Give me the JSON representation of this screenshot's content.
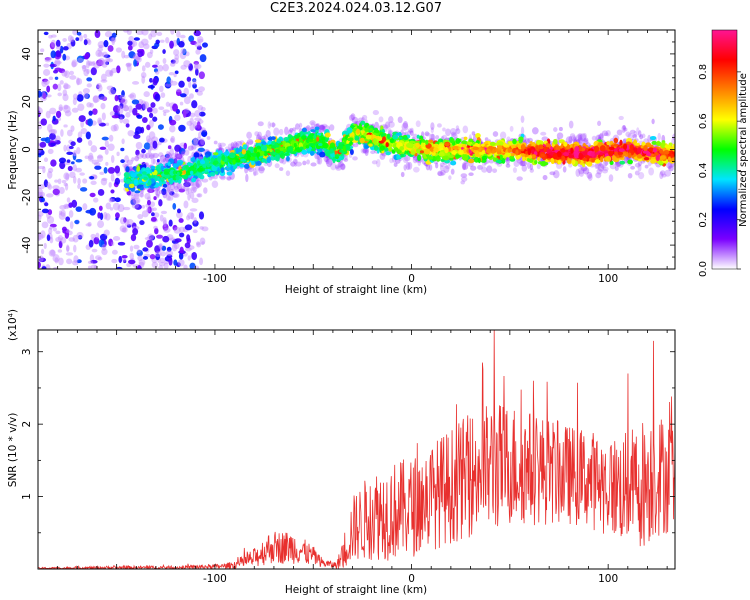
{
  "title": "C2E3.2024.024.03.12.G07",
  "colors": {
    "snr_line": "#e8302e",
    "spectral_colormap": [
      "#ffffff",
      "#7a00ff",
      "#0000ff",
      "#00e5ff",
      "#00ff00",
      "#ffff00",
      "#ff8000",
      "#ff0000",
      "#ff1493"
    ]
  },
  "chart_data": [
    {
      "type": "heatmap",
      "title": "C2E3.2024.024.03.12.G07",
      "xlabel": "Height of straight line (km)",
      "ylabel": "Frequency (Hz)",
      "xlim": [
        -190,
        134
      ],
      "ylim": [
        -50,
        50
      ],
      "xticks": [
        -100,
        0,
        100
      ],
      "yticks": [
        -40,
        -20,
        0,
        20,
        40
      ],
      "colorbar": {
        "label": "Normalized spectral amplitude",
        "range": [
          0.0,
          0.97
        ],
        "ticks": [
          "0.0",
          "0.2",
          "0.4",
          "0.6",
          "0.8"
        ]
      },
      "signal_track": {
        "x": [
          -140,
          -120,
          -100,
          -80,
          -60,
          -45,
          -38,
          -28,
          -10,
          10,
          30,
          50,
          70,
          90,
          110,
          130
        ],
        "center_frequency_hz": [
          -12,
          -10,
          -6,
          -2,
          2,
          4,
          -2,
          8,
          2,
          0,
          0,
          0,
          -1,
          -2,
          0,
          -2
        ],
        "typical_amplitude": [
          0.25,
          0.3,
          0.3,
          0.35,
          0.4,
          0.35,
          0.35,
          0.45,
          0.45,
          0.5,
          0.55,
          0.6,
          0.8,
          0.8,
          0.75,
          0.7
        ]
      },
      "noise_region_x": [
        -190,
        -105
      ]
    },
    {
      "type": "line",
      "xlabel": "Height of straight line (km)",
      "ylabel": "SNR (10 * v/v)",
      "multiplier": "(x10⁴)",
      "xlim": [
        -190,
        134
      ],
      "ylim": [
        0,
        3.3
      ],
      "xticks": [
        -100,
        0,
        100
      ],
      "yticks": [
        1,
        2,
        3
      ],
      "series": [
        {
          "x": [
            -190,
            -150,
            -120,
            -95,
            -90,
            -80,
            -72,
            -60,
            -50,
            -45,
            -38,
            -35,
            -30,
            -20,
            -10,
            0,
            10,
            20,
            30,
            40,
            50,
            60,
            70,
            80,
            90,
            100,
            110,
            118,
            125,
            134
          ],
          "mean": [
            0.01,
            0.02,
            0.02,
            0.04,
            0.06,
            0.15,
            0.3,
            0.3,
            0.18,
            0.08,
            0.05,
            0.2,
            0.55,
            0.75,
            0.8,
            0.85,
            1.0,
            1.15,
            1.3,
            1.4,
            1.45,
            1.4,
            1.35,
            1.3,
            1.25,
            1.15,
            1.1,
            1.2,
            1.3,
            1.3
          ],
          "spread": [
            0.01,
            0.02,
            0.02,
            0.03,
            0.05,
            0.12,
            0.2,
            0.2,
            0.12,
            0.05,
            0.04,
            0.2,
            0.4,
            0.55,
            0.6,
            0.6,
            0.65,
            0.7,
            0.75,
            0.8,
            0.75,
            0.7,
            0.65,
            0.6,
            0.6,
            0.6,
            0.7,
            0.8,
            0.75,
            0.7
          ],
          "peaks": [
            {
              "x": 42,
              "y": 3.3
            },
            {
              "x": 123,
              "y": 3.15
            },
            {
              "x": 110,
              "y": 2.7
            },
            {
              "x": 36,
              "y": 2.85
            }
          ]
        }
      ]
    }
  ]
}
